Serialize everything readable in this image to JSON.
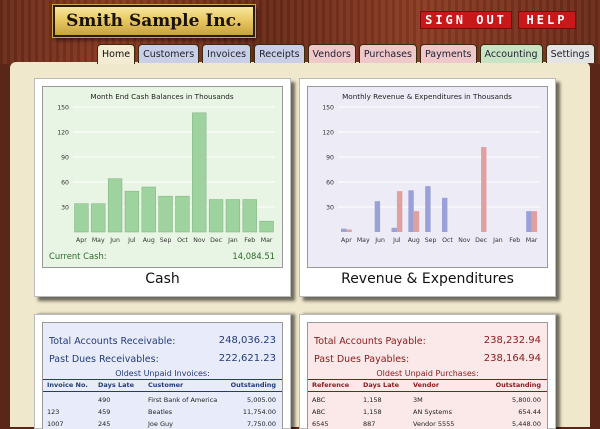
{
  "company": "Smith Sample Inc.",
  "top_buttons": {
    "sign_out": "SIGN OUT",
    "help": "HELP"
  },
  "tabs": [
    {
      "label": "Home",
      "active": true
    },
    {
      "label": "Customers"
    },
    {
      "label": "Invoices"
    },
    {
      "label": "Receipts"
    },
    {
      "label": "Vendors"
    },
    {
      "label": "Purchases"
    },
    {
      "label": "Payments"
    },
    {
      "label": "Accounting"
    },
    {
      "label": "Settings"
    }
  ],
  "colors": {
    "cash_bar": "#9ed29e",
    "cash_bg": "#e9f5e4",
    "rev_bar": "#9aa0d8",
    "exp_bar": "#e0a0a0",
    "rev_bg": "#ecebf6",
    "ar_bg": "#e8ecfa",
    "ap_bg": "#fbe9e9",
    "link_blue": "#223b7a",
    "link_red": "#8a1a1a"
  },
  "cash_card": {
    "caption": "Cash",
    "current_cash_label": "Current Cash:",
    "current_cash_value": "14,084.51"
  },
  "revenue_card": {
    "caption": "Revenue & Expenditures"
  },
  "chart_data": [
    {
      "type": "bar",
      "title": "Month End Cash Balances in Thousands",
      "categories": [
        "Apr",
        "May",
        "Jun",
        "Jul",
        "Aug",
        "Sep",
        "Oct",
        "Nov",
        "Dec",
        "Jan",
        "Feb",
        "Mar"
      ],
      "values": [
        34,
        34,
        64,
        49,
        54,
        43,
        43,
        143,
        39,
        39,
        39,
        13
      ],
      "ylim": [
        0,
        150
      ],
      "yticks": [
        0,
        30,
        60,
        90,
        120,
        150
      ],
      "grid": true,
      "xlabel": "",
      "ylabel": ""
    },
    {
      "type": "bar",
      "title": "Monthly Revenue & Expenditures in Thousands",
      "categories": [
        "Apr",
        "May",
        "Jun",
        "Jul",
        "Aug",
        "Sep",
        "Oct",
        "Nov",
        "Dec",
        "Jan",
        "Feb",
        "Mar"
      ],
      "series": [
        {
          "values": [
            4,
            0,
            37,
            5,
            50,
            55,
            41,
            0,
            0,
            0,
            0,
            25
          ]
        },
        {
          "values": [
            3,
            0,
            0,
            49,
            25,
            0,
            0,
            0,
            102,
            0,
            0,
            25
          ]
        }
      ],
      "ylim": [
        0,
        150
      ],
      "yticks": [
        0,
        30,
        60,
        90,
        120,
        150
      ],
      "grid": true,
      "xlabel": "",
      "ylabel": ""
    }
  ],
  "receivables": {
    "total_label": "Total Accounts Receivable:",
    "total_value": "248,036.23",
    "past_due_label": "Past Dues Receivables:",
    "past_due_value": "222,621.23",
    "section_title": "Oldest Unpaid Invoices:",
    "columns": [
      "Invoice No.",
      "Days Late",
      "Customer",
      "Outstanding"
    ],
    "rows": [
      [
        "",
        "490",
        "First Bank of America",
        "5,005.00"
      ],
      [
        "123",
        "459",
        "Beatles",
        "11,754.00"
      ],
      [
        "1007",
        "245",
        "Joe Guy",
        "7,750.00"
      ]
    ]
  },
  "payables": {
    "total_label": "Total Accounts Payable:",
    "total_value": "238,232.94",
    "past_due_label": "Past Dues Payables:",
    "past_due_value": "238,164.94",
    "section_title": "Oldest Unpaid Purchases:",
    "columns": [
      "Reference",
      "Days Late",
      "Vendor",
      "Outstanding"
    ],
    "rows": [
      [
        "ABC",
        "1,158",
        "3M",
        "5,800.00"
      ],
      [
        "ABC",
        "1,158",
        "AN Systems",
        "654.44"
      ],
      [
        "6545",
        "887",
        "Vendor 5555",
        "5,448.00"
      ]
    ]
  }
}
